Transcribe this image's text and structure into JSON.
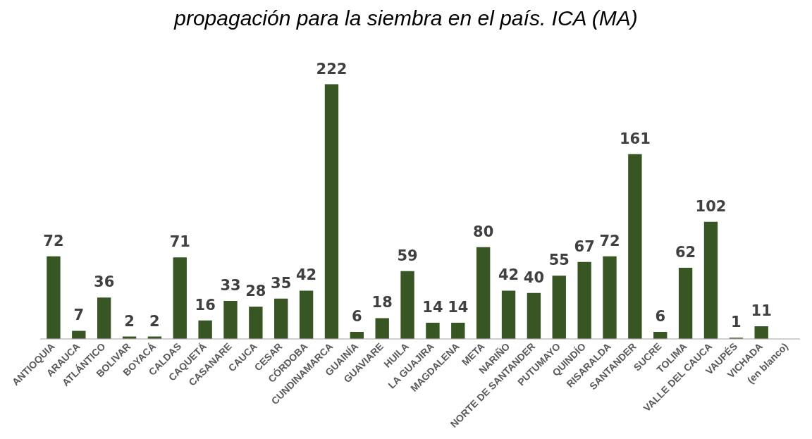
{
  "chart_data": {
    "type": "bar",
    "title": "propagación para la siembra en el país. ICA (MA)",
    "categories": [
      "ANTIOQUIA",
      "ARAUCA",
      "ATLÁNTICO",
      "BOLIVAR",
      "BOYACÁ",
      "CALDAS",
      "CAQUETÁ",
      "CASANARE",
      "CAUCA",
      "CESAR",
      "CÓRDOBA",
      "CUNDINAMARCA",
      "GUAINÍA",
      "GUAVIARE",
      "HUILA",
      "LA GUAJIRA",
      "MAGDALENA",
      "META",
      "NARIÑO",
      "NORTE DE SANTANDER",
      "PUTUMAYO",
      "QUINDÍO",
      "RISARALDA",
      "SANTANDER",
      "SUCRE",
      "TOLIMA",
      "VALLE DEL CAUCA",
      "VAUPÉS",
      "VICHADA",
      "(en blanco)"
    ],
    "values": [
      72,
      7,
      36,
      2,
      2,
      71,
      16,
      33,
      28,
      35,
      42,
      222,
      6,
      18,
      59,
      14,
      14,
      80,
      42,
      40,
      55,
      67,
      72,
      161,
      6,
      62,
      102,
      1,
      11,
      null
    ],
    "color": "#375623",
    "data_labels": true,
    "grid": false,
    "legend": false,
    "tick_labels": "x"
  }
}
